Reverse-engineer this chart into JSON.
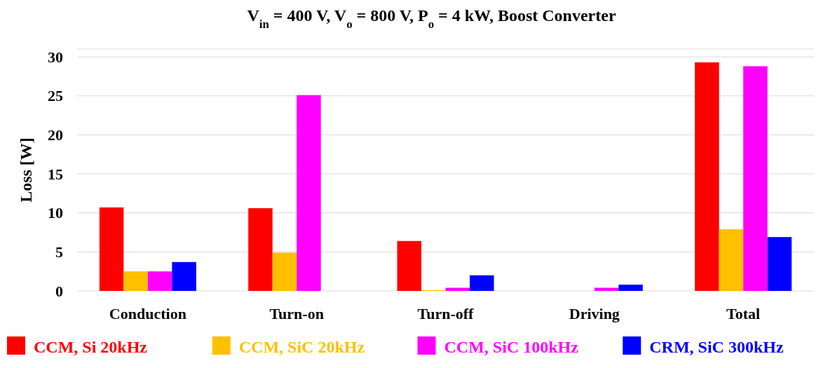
{
  "chart_data": {
    "type": "bar",
    "title": "V$_{in}$ = 400 V, V$_{o}$ = 800 V, P$_{o}$ = 4 kW, Boost Converter",
    "ylabel": "Loss [W]",
    "categories": [
      "Conduction",
      "Turn-on",
      "Turn-off",
      "Driving",
      "Total"
    ],
    "series": [
      {
        "name": "CCM, Si 20kHz",
        "color": "#ff0000",
        "values": [
          10.7,
          10.6,
          6.4,
          0,
          29.3
        ]
      },
      {
        "name": "CCM, SiC 20kHz",
        "color": "#ffc000",
        "values": [
          2.5,
          4.9,
          0.1,
          0,
          7.9
        ]
      },
      {
        "name": "CCM, SiC 100kHz",
        "color": "#ff00ff",
        "values": [
          2.5,
          25.1,
          0.4,
          0.4,
          28.8
        ]
      },
      {
        "name": "CRM, SiC 300kHz",
        "color": "#0000ff",
        "values": [
          3.7,
          0,
          2.0,
          0.8,
          6.9
        ]
      }
    ],
    "ylim": [
      0,
      31
    ],
    "yticks": [
      0,
      5,
      10,
      15,
      20,
      25,
      30
    ],
    "grid": "y",
    "legend": "bottom"
  }
}
